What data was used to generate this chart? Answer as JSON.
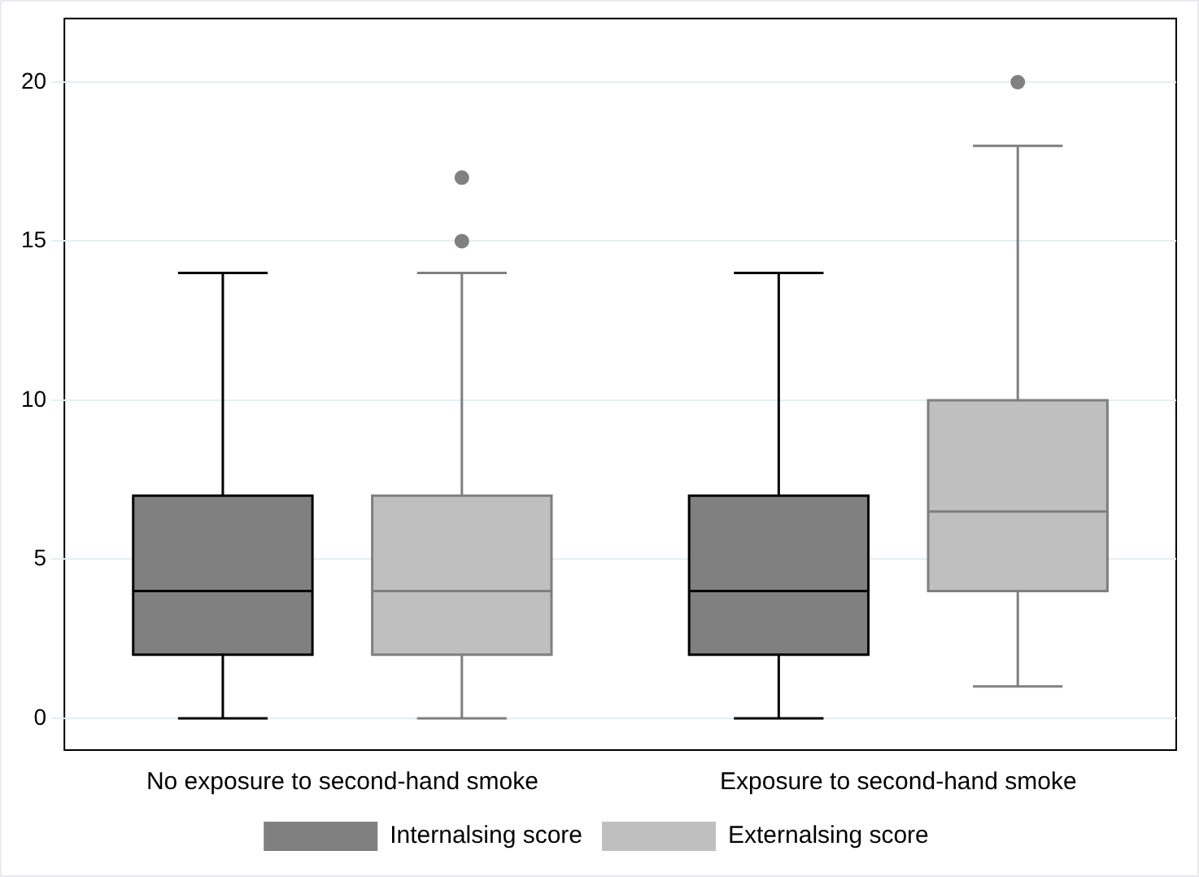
{
  "chart_data": {
    "type": "box",
    "categories": [
      "No exposure to second-hand smoke",
      "Exposure to second-hand smoke"
    ],
    "series": [
      {
        "name": "Internalsing score",
        "color": "#808080",
        "boxes": [
          {
            "low": 0,
            "q1": 2,
            "median": 4,
            "q3": 7,
            "high": 14
          },
          {
            "low": 0,
            "q1": 2,
            "median": 4,
            "q3": 7,
            "high": 14
          }
        ]
      },
      {
        "name": "Externalsing score",
        "color": "#bfbfbf",
        "boxes": [
          {
            "low": 0,
            "q1": 2,
            "median": 4,
            "q3": 7,
            "high": 14,
            "outliers": [
              15,
              17
            ]
          },
          {
            "low": 1,
            "q1": 4,
            "median": 6.5,
            "q3": 10,
            "high": 18,
            "outliers": [
              20
            ]
          }
        ]
      }
    ],
    "ylim": [
      -1,
      22
    ],
    "yticks": [
      0,
      5,
      10,
      15,
      20
    ],
    "grid": "y",
    "legend": "bottom"
  }
}
